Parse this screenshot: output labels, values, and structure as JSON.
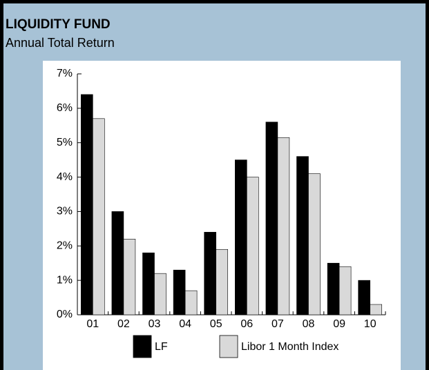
{
  "chart_data": {
    "type": "bar",
    "title": "LIQUIDITY FUND",
    "subtitle": "Annual Total Return",
    "categories": [
      "01",
      "02",
      "03",
      "04",
      "05",
      "06",
      "07",
      "08",
      "09",
      "10"
    ],
    "series": [
      {
        "name": "LF",
        "color": "#000000",
        "values": [
          6.4,
          3.0,
          1.8,
          1.3,
          2.4,
          4.5,
          5.6,
          4.6,
          1.5,
          1.0
        ]
      },
      {
        "name": "Libor 1 Month Index",
        "color": "#d9d9d9",
        "values": [
          5.7,
          2.2,
          1.2,
          0.7,
          1.9,
          4.0,
          5.15,
          4.1,
          1.4,
          0.3
        ]
      }
    ],
    "ylim": [
      0,
      7
    ],
    "yticks": [
      {
        "value": 0,
        "label": "0%"
      },
      {
        "value": 1,
        "label": "1%"
      },
      {
        "value": 2,
        "label": "2%"
      },
      {
        "value": 3,
        "label": "3%"
      },
      {
        "value": 4,
        "label": "4%"
      },
      {
        "value": 5,
        "label": "5%"
      },
      {
        "value": 6,
        "label": "6%"
      },
      {
        "value": 7,
        "label": "7%"
      }
    ],
    "grid": false
  }
}
